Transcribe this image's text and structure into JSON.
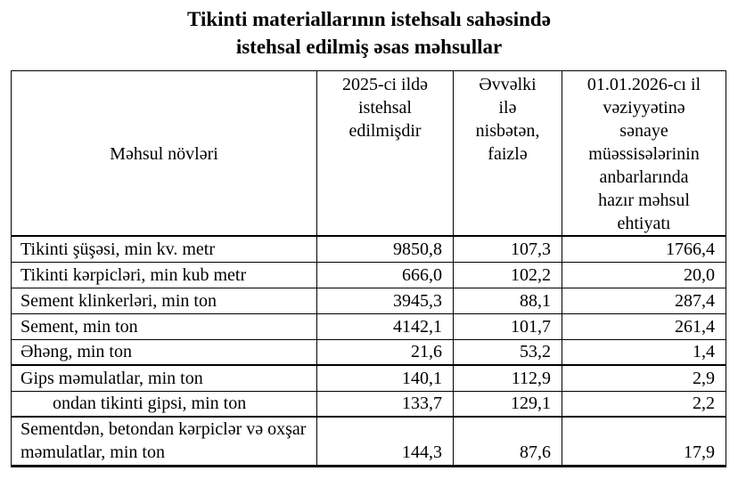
{
  "title": {
    "line1": "Tikinti materiallarının istehsalı sahəsində",
    "line2": "istehsal edilmiş əsas məhsullar"
  },
  "table": {
    "columns": [
      {
        "label": "Məhsul növləri"
      },
      {
        "label": "2025-ci ildə\nistehsal\nedilmişdir"
      },
      {
        "label": "Əvvəlki\nilə\nnisbətən,\nfaizlə"
      },
      {
        "label": "01.01.2026-cı il\nvəziyyətinə\nsənaye\nmüəssisələrinin\nanbarlarında\nhazır məhsul\nehtiyatı"
      }
    ],
    "rows": [
      {
        "label": "Tikinti şüşəsi, min kv. metr",
        "produced": "9850,8",
        "percent": "107,3",
        "stock": "1766,4"
      },
      {
        "label": "Tikinti kərpicləri, min kub metr",
        "produced": "666,0",
        "percent": "102,2",
        "stock": "20,0"
      },
      {
        "label": "Sement klinkerləri, min ton",
        "produced": "3945,3",
        "percent": "88,1",
        "stock": "287,4"
      },
      {
        "label": "Sement, min ton",
        "produced": "4142,1",
        "percent": "101,7",
        "stock": "261,4"
      },
      {
        "label": "Əhəng, min ton",
        "produced": "21,6",
        "percent": "53,2",
        "stock": "1,4"
      },
      {
        "label": "Gips məmulatlar, min ton",
        "produced": "140,1",
        "percent": "112,9",
        "stock": "2,9"
      },
      {
        "label": "ondan tikinti gipsi, min ton",
        "produced": "133,7",
        "percent": "129,1",
        "stock": "2,2"
      },
      {
        "label": "Sementdən, betondan kərpiclər və oxşar məmulatlar, min ton",
        "produced": "144,3",
        "percent": "87,6",
        "stock": "17,9"
      }
    ]
  }
}
